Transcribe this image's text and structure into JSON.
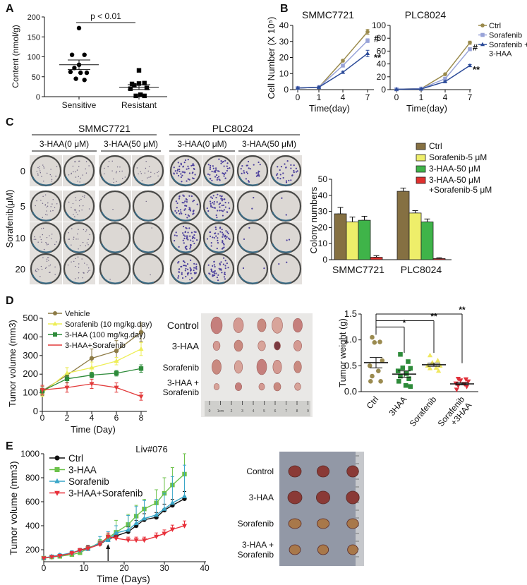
{
  "panels": {
    "a": "A",
    "b": "B",
    "c": "C",
    "d": "D",
    "e": "E"
  },
  "colony_images": {
    "cell_lines": [
      "SMMC7721",
      "PLC8024"
    ],
    "conditions": [
      "3-HAA(0 μM)",
      "3-HAA(50 μM)",
      "3-HAA(0 μM)",
      "3-HAA(50 μM)"
    ],
    "row_axis_label": "Sorafenib(μM)",
    "row_labels": [
      "0",
      "5",
      "10",
      "20"
    ]
  },
  "tumor_photo_d": {
    "labels": [
      [
        "Control"
      ],
      [
        "3-HAA"
      ],
      [
        "Sorafenib"
      ],
      [
        "3-HAA +",
        "Sorafenib"
      ]
    ],
    "ruler_labels": [
      "0",
      "1cm",
      "2",
      "3",
      "4",
      "5",
      "6",
      "7",
      "8",
      "9"
    ]
  },
  "tumor_photo_e": {
    "labels": [
      [
        "Control"
      ],
      [
        "3-HAA"
      ],
      [
        "Sorafenib"
      ],
      [
        "3-HAA +",
        "Sorafenib"
      ]
    ]
  },
  "chart_data": [
    {
      "type": "scatter",
      "ylabel": "Content (nmol/g)",
      "ylim": [
        0,
        200
      ],
      "yticks": [
        0,
        50,
        100,
        150,
        200
      ],
      "categories": [
        "Sensitive",
        "Resistant"
      ],
      "annotation": "p < 0.01",
      "series": [
        {
          "marker": "circle",
          "color": "#000000",
          "values": [
            172,
            105,
            105,
            80,
            72,
            62,
            60,
            60,
            45,
            42
          ],
          "mean": 80,
          "sem": 12
        },
        {
          "marker": "square",
          "color": "#000000",
          "values": [
            66,
            32,
            34,
            33,
            28,
            20,
            22,
            5,
            2,
            2
          ],
          "mean": 24,
          "sem": 6
        }
      ]
    },
    {
      "type": "line",
      "title": "SMMC7721",
      "xlabel": "Time(day)",
      "ylabel": "Cell Number (X 10⁵)",
      "categories": [
        0,
        1,
        4,
        7
      ],
      "ylim": [
        0,
        40
      ],
      "yticks": [
        0,
        10,
        20,
        30,
        40
      ],
      "series": [
        {
          "marker": "circle",
          "color": "#9a8a4c",
          "values": [
            1,
            1.5,
            18,
            36
          ],
          "errors": [
            0.3,
            0.3,
            0.8,
            1.5
          ]
        },
        {
          "marker": "square",
          "color": "#98a3d8",
          "values": [
            1,
            1.5,
            15,
            30.5
          ],
          "errors": [
            0.3,
            0.3,
            0.8,
            1.2
          ]
        },
        {
          "marker": "triangle-up",
          "color": "#2b4a98",
          "values": [
            1,
            1.5,
            10.8,
            22.5
          ],
          "errors": [
            0.3,
            0.3,
            0.6,
            2
          ]
        }
      ],
      "annotations": [
        {
          "text": "#",
          "series": 1,
          "x": 7
        },
        {
          "text": "**",
          "series": 2,
          "x": 7
        }
      ]
    },
    {
      "type": "line",
      "title": "PLC8024",
      "xlabel": "Time(day)",
      "categories": [
        0,
        1,
        4,
        7
      ],
      "ylim": [
        0,
        100
      ],
      "yticks": [
        0,
        20,
        40,
        60,
        80,
        100
      ],
      "series": [
        {
          "name": [
            "Ctrl"
          ],
          "marker": "circle",
          "color": "#9a8a4c",
          "values": [
            0.5,
            1.5,
            24,
            73
          ],
          "errors": [
            0.3,
            0.3,
            1,
            2.5
          ]
        },
        {
          "name": [
            "Sorafenib"
          ],
          "marker": "square",
          "color": "#98a3d8",
          "values": [
            0.5,
            1.5,
            17,
            63
          ],
          "errors": [
            0.3,
            0.3,
            1,
            1.5
          ]
        },
        {
          "name": [
            "Sorafenib +",
            "3-HAA"
          ],
          "marker": "triangle-up",
          "color": "#2b4a98",
          "values": [
            0.5,
            1,
            12.5,
            37.5
          ],
          "errors": [
            0.3,
            0.3,
            1,
            1.5
          ]
        }
      ],
      "annotations": [
        {
          "text": "#",
          "series": 1,
          "x": 7
        },
        {
          "text": "**",
          "series": 2,
          "x": 7
        }
      ]
    },
    {
      "type": "bar",
      "ylabel": "Colony numbers",
      "categories": [
        "SMMC7721",
        "PLC8024"
      ],
      "ylim": [
        0,
        50
      ],
      "yticks": [
        0,
        10,
        20,
        30,
        40,
        50
      ],
      "legend": "top-right",
      "series": [
        {
          "name": [
            "Ctrl"
          ],
          "color": "#857042",
          "values": [
            28.5,
            42.5
          ],
          "errors": [
            4,
            2
          ]
        },
        {
          "name": [
            "Sorafenib-5 μM"
          ],
          "color": "#eeee6a",
          "values": [
            23.5,
            29
          ],
          "errors": [
            3,
            1.5
          ]
        },
        {
          "name": [
            "3-HAA-50 μM"
          ],
          "color": "#3fb449",
          "values": [
            24.5,
            23.5
          ],
          "errors": [
            2.5,
            1.8
          ]
        },
        {
          "name": [
            "3-HAA-50 μM",
            "+Sorafenib-5 μM"
          ],
          "color": "#e0302e",
          "values": [
            1.5,
            0.7
          ],
          "errors": [
            1,
            0.5
          ]
        }
      ]
    },
    {
      "type": "line",
      "xlabel": "Time (Day)",
      "ylabel": "Tumor volume (mm3)",
      "x": [
        0,
        2,
        4,
        6,
        8
      ],
      "xlim": [
        0,
        8
      ],
      "xticks": [
        0,
        2,
        4,
        6,
        8
      ],
      "ylim": [
        0,
        500
      ],
      "yticks": [
        0,
        100,
        200,
        300,
        400,
        500
      ],
      "legend": "top-left",
      "series": [
        {
          "name": "Vehicle",
          "marker": "circle",
          "color": "#8c7a45",
          "values": [
            110,
            195,
            285,
            325,
            425
          ],
          "errors": [
            25,
            40,
            50,
            55,
            50
          ]
        },
        {
          "name": "Sorafenib (10 mg/kg.day)",
          "marker": "triangle-up",
          "color": "#eeee55",
          "values": [
            100,
            205,
            235,
            270,
            335
          ],
          "errors": [
            20,
            30,
            30,
            20,
            35
          ]
        },
        {
          "name": "3-HAA (100 mg/kg.day)",
          "marker": "square",
          "color": "#2e8b3a",
          "values": [
            110,
            175,
            195,
            205,
            230
          ],
          "errors": [
            15,
            20,
            15,
            15,
            20
          ]
        },
        {
          "name": "3-HAA+Sorafenib",
          "marker": "triangle-down",
          "color": "#e23a3a",
          "values": [
            115,
            128,
            148,
            128,
            80
          ],
          "errors": [
            25,
            25,
            25,
            25,
            20
          ]
        }
      ]
    },
    {
      "type": "scatter",
      "ylabel": "Tumor weight (g)",
      "ylim": [
        0,
        1.5
      ],
      "yticks": [
        "0.0",
        "0.5",
        "1.0",
        "1.5"
      ],
      "categories": [
        [
          "Ctrl"
        ],
        [
          "3HAA"
        ],
        [
          "Sorafenib"
        ],
        [
          "Sorafenib",
          "+3HAA"
        ]
      ],
      "series": [
        {
          "marker": "circle",
          "color": "#9b8b50",
          "values": [
            1.05,
            0.96,
            0.95,
            0.6,
            0.5,
            0.4,
            0.3,
            0.2,
            0.2
          ],
          "mean": 0.56,
          "sem": 0.1
        },
        {
          "marker": "square",
          "color": "#2e8b3a",
          "values": [
            0.72,
            0.58,
            0.46,
            0.45,
            0.4,
            0.35,
            0.3,
            0.25,
            0.2,
            0.12,
            0.1
          ],
          "mean": 0.34,
          "sem": 0.06
        },
        {
          "marker": "triangle-up",
          "color": "#f0e860",
          "values": [
            0.7,
            0.6,
            0.56,
            0.5,
            0.5,
            0.46,
            0.45,
            0.4
          ],
          "mean": 0.52,
          "sem": 0.03
        },
        {
          "marker": "triangle-down",
          "color": "#e0303a",
          "values": [
            0.25,
            0.24,
            0.22,
            0.2,
            0.16,
            0.15,
            0.12,
            0.1,
            0.04
          ],
          "mean": 0.15,
          "sem": 0.02
        }
      ],
      "significance": [
        {
          "from": 0,
          "to": 1,
          "text": "*"
        },
        {
          "from": 0,
          "to": 2,
          "text": "**"
        },
        {
          "from": 0,
          "to": 3,
          "text": "**"
        }
      ]
    },
    {
      "type": "line",
      "title": "Liv#076",
      "xlabel": "Time (Days)",
      "ylabel": "Tumor volume (mm3)",
      "x": [
        0,
        2,
        4,
        7,
        9,
        11,
        14,
        16,
        18,
        21,
        23,
        25,
        28,
        30,
        32,
        35
      ],
      "xlim": [
        0,
        40
      ],
      "xticks": [
        0,
        10,
        20,
        30,
        40
      ],
      "ylim": [
        100,
        1000
      ],
      "yticks": [
        200,
        400,
        600,
        800,
        1000
      ],
      "legend": "top-left",
      "arrow_at_day": 16,
      "series": [
        {
          "name": "Ctrl",
          "marker": "circle",
          "color": "#111111",
          "values": [
            130,
            140,
            150,
            175,
            195,
            215,
            250,
            285,
            315,
            350,
            400,
            450,
            470,
            530,
            570,
            625
          ],
          "errors": [
            10,
            10,
            12,
            15,
            15,
            20,
            25,
            30,
            35,
            40,
            45,
            50,
            40,
            50,
            50,
            60
          ]
        },
        {
          "name": "3-HAA",
          "marker": "square",
          "color": "#6cc24a",
          "values": [
            130,
            140,
            145,
            160,
            175,
            210,
            260,
            300,
            345,
            410,
            480,
            540,
            590,
            670,
            740,
            830
          ],
          "errors": [
            10,
            10,
            12,
            15,
            15,
            20,
            25,
            30,
            100,
            85,
            90,
            80,
            110,
            130,
            145,
            170
          ]
        },
        {
          "name": "Sorafenib",
          "marker": "triangle-up",
          "color": "#3aa6c8",
          "values": [
            130,
            145,
            155,
            175,
            195,
            205,
            260,
            280,
            340,
            365,
            420,
            460,
            490,
            540,
            590,
            645
          ],
          "errors": [
            10,
            10,
            12,
            15,
            15,
            20,
            50,
            70,
            60,
            120,
            140,
            150,
            130,
            130,
            220,
            260
          ]
        },
        {
          "name": "3-HAA+Sorafenib",
          "marker": "triangle-down",
          "color": "#e8303a",
          "values": [
            130,
            140,
            150,
            170,
            195,
            210,
            245,
            310,
            295,
            280,
            280,
            280,
            310,
            335,
            370,
            400
          ],
          "errors": [
            10,
            10,
            12,
            15,
            15,
            20,
            25,
            30,
            25,
            25,
            25,
            25,
            30,
            30,
            35,
            40
          ]
        }
      ]
    }
  ]
}
